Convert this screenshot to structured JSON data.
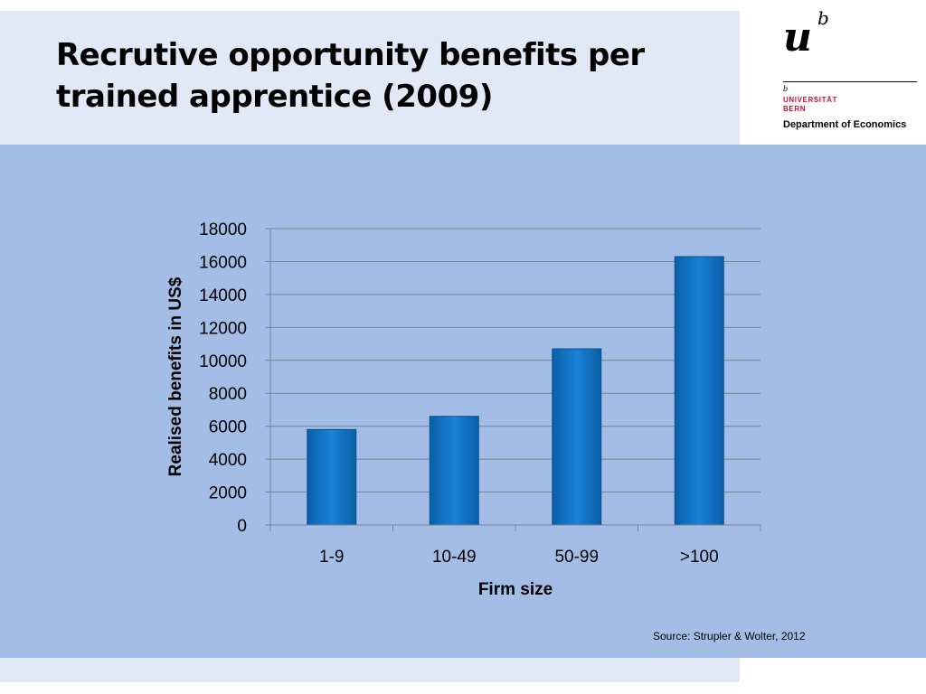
{
  "slide": {
    "title": "Recrutive opportunity benefits per trained apprentice (2009)",
    "source": "Source: Strupler & Wolter, 2012"
  },
  "logo": {
    "mark_u": "u",
    "mark_b": "b",
    "small_b": "b",
    "university": "UNIVERSITÄT",
    "city": "BERN",
    "department": "Department of Economics"
  },
  "colors": {
    "title_band": "#e2e9f6",
    "plot_background": "#a3bde6",
    "bar": "#0a74c9",
    "university_red": "#c8102e"
  },
  "chart_data": {
    "type": "bar",
    "categories": [
      "1-9",
      "10-49",
      "50-99",
      ">100"
    ],
    "values": [
      5800,
      6600,
      10700,
      16300
    ],
    "xlabel": "Firm size",
    "ylabel": "Realised benefits in US$",
    "ylim": [
      0,
      18000
    ],
    "yticks": [
      0,
      2000,
      4000,
      6000,
      8000,
      10000,
      12000,
      14000,
      16000,
      18000
    ],
    "grid": true,
    "legend": "none"
  }
}
